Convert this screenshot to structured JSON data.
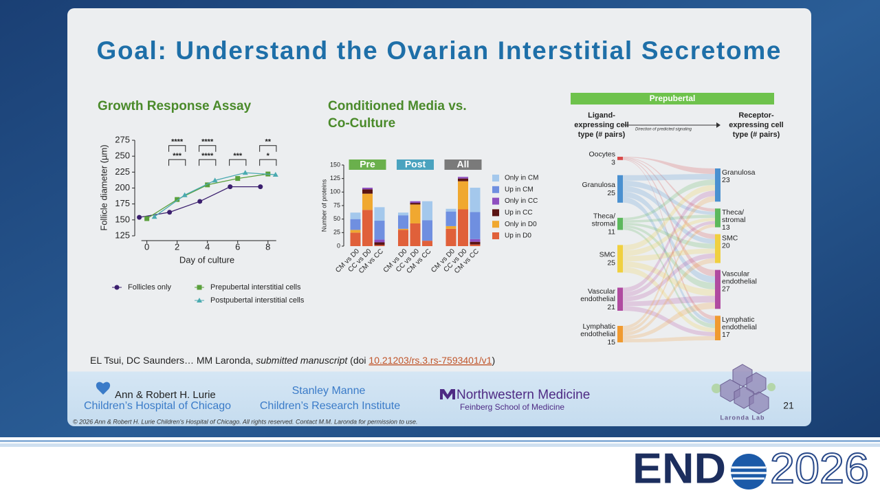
{
  "title": "Goal: Understand the Ovarian Interstitial Secretome",
  "chart_data": [
    {
      "type": "line",
      "title": "Growth Response Assay",
      "x_label": "Day of culture",
      "y_label": "Follicle diameter (µm)",
      "xlim": [
        -0.8,
        8.6
      ],
      "xticks": [
        0,
        2,
        4,
        6,
        8
      ],
      "ylim": [
        125,
        275
      ],
      "yticks": [
        125,
        150,
        175,
        200,
        225,
        250,
        275
      ],
      "series": [
        {
          "name": "Follicles only",
          "color": "#3b1f6e",
          "marker": "circle",
          "x": [
            -0.5,
            1.5,
            3.5,
            5.5,
            7.5
          ],
          "values": [
            154,
            162,
            179,
            202,
            202
          ]
        },
        {
          "name": "Prepubertal interstitial cells",
          "color": "#5aa03c",
          "marker": "square",
          "x": [
            0,
            2,
            4,
            6,
            8
          ],
          "values": [
            152,
            182,
            205,
            215,
            222
          ]
        },
        {
          "name": "Postpubertal interstitial cells",
          "color": "#4aaab0",
          "marker": "triangle",
          "x": [
            0.5,
            2.5,
            4.5,
            6.5,
            8.5
          ],
          "values": [
            155,
            189,
            212,
            224,
            221
          ]
        }
      ],
      "annotations": [
        {
          "text": "****",
          "x": 2,
          "y": 272
        },
        {
          "text": "***",
          "x": 2,
          "y": 250
        },
        {
          "text": "****",
          "x": 4,
          "y": 272
        },
        {
          "text": "****",
          "x": 4,
          "y": 250
        },
        {
          "text": "***",
          "x": 6,
          "y": 250
        },
        {
          "text": "**",
          "x": 8,
          "y": 272
        },
        {
          "text": "*",
          "x": 8,
          "y": 250
        }
      ]
    },
    {
      "type": "bar",
      "stacked": true,
      "title": [
        "Conditioned Media vs.",
        "Co-Culture"
      ],
      "y_label": "Number of proteins",
      "ylim": [
        0,
        150
      ],
      "yticks": [
        0,
        25,
        50,
        75,
        100,
        125,
        150
      ],
      "groups": [
        {
          "name": "Pre",
          "color": "#6ab04c"
        },
        {
          "name": "Post",
          "color": "#4aa3bf"
        },
        {
          "name": "All",
          "color": "#7a7a7a"
        }
      ],
      "categories": [
        "CM vs D0",
        "CC vs D0",
        "CM vs CC",
        "CM vs D0",
        "CC vs D0",
        "CM vs CC",
        "CM vs D0",
        "CC vs D0",
        "CM vs CC"
      ],
      "series": [
        {
          "name": "Only in CM",
          "color": "#a4c8ec",
          "values": [
            12,
            0,
            25,
            5,
            0,
            35,
            5,
            0,
            45
          ]
        },
        {
          "name": "Up in CM",
          "color": "#6f8fe0",
          "values": [
            20,
            0,
            35,
            25,
            0,
            38,
            27,
            0,
            50
          ]
        },
        {
          "name": "Only in CC",
          "color": "#8e4fc0",
          "values": [
            0,
            3,
            5,
            0,
            3,
            0,
            0,
            3,
            5
          ]
        },
        {
          "name": "Up in CC",
          "color": "#5a1414",
          "values": [
            0,
            8,
            5,
            0,
            3,
            0,
            0,
            5,
            5
          ]
        },
        {
          "name": "Only in D0",
          "color": "#f0a830",
          "values": [
            5,
            30,
            0,
            2,
            35,
            0,
            5,
            52,
            0
          ]
        },
        {
          "name": "Up in D0",
          "color": "#e0603a",
          "values": [
            25,
            67,
            2,
            30,
            42,
            10,
            32,
            68,
            3
          ]
        }
      ]
    }
  ],
  "sankey": {
    "header": "Prepubertal",
    "left_title": [
      "Ligand-",
      "expressing cell",
      "type (# pairs)"
    ],
    "right_title": [
      "Receptor-",
      "expressing cell",
      "type (# pairs)"
    ],
    "direction": "Direction of predicted signaling",
    "left": [
      {
        "label": [
          "Oocytes"
        ],
        "count": 3,
        "color": "#d84a4a"
      },
      {
        "label": [
          "Granulosa"
        ],
        "count": 25,
        "color": "#4a90d0"
      },
      {
        "label": [
          "Theca/",
          "stromal"
        ],
        "count": 11,
        "color": "#5cb85c"
      },
      {
        "label": [
          "SMC"
        ],
        "count": 25,
        "color": "#f0d040"
      },
      {
        "label": [
          "Vascular",
          "endothelial"
        ],
        "count": 21,
        "color": "#b04aa0"
      },
      {
        "label": [
          "Lymphatic",
          "endothelial"
        ],
        "count": 15,
        "color": "#f09a30"
      }
    ],
    "right": [
      {
        "label": [
          "Granulosa"
        ],
        "count": 23,
        "color": "#4a90d0"
      },
      {
        "label": [
          "Theca/",
          "stromal"
        ],
        "count": 13,
        "color": "#5cb85c"
      },
      {
        "label": [
          "SMC"
        ],
        "count": 20,
        "color": "#f0d040"
      },
      {
        "label": [
          "Vascular",
          "endothelial"
        ],
        "count": 27,
        "color": "#b04aa0"
      },
      {
        "label": [
          "Lymphatic",
          "endothelial"
        ],
        "count": 17,
        "color": "#f09a30"
      }
    ]
  },
  "citation": {
    "authors": "EL Tsui, DC Saunders… MM Laronda, ",
    "status": "submitted manuscript",
    "doi_prefix": " (doi ",
    "doi": "10.21203/rs.3.rs-7593401/v1",
    "close": ")"
  },
  "logos": {
    "lurie": [
      "Ann & Robert H. Lurie",
      "Children’s Hospital of Chicago"
    ],
    "manne": [
      "Stanley Manne",
      "Children’s Research Institute"
    ],
    "northwestern": [
      "Northwestern Medicine",
      "Feinberg School of Medicine"
    ],
    "lab": "Laronda Lab"
  },
  "copyright": "© 2026 Ann & Robert H. Lurie Children’s Hospital of Chicago. All rights reserved. Contact M.M. Laronda for permission to use.",
  "page_number": "21",
  "conference": {
    "name": "END",
    "year": "2026"
  }
}
